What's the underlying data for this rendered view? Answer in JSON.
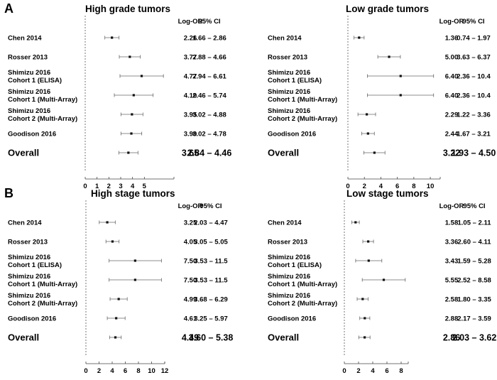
{
  "figure": {
    "panel_labels": [
      "A",
      "B"
    ]
  },
  "chart_data": [
    {
      "type": "forest",
      "panel": "A",
      "title": "High grade tumors",
      "col_logor": "Log-OR",
      "col_ci": "95% CI",
      "xlim": [
        0,
        7.5
      ],
      "xticks": [
        0,
        1,
        2,
        3,
        4,
        5
      ],
      "rows": [
        {
          "label1": "Chen 2014",
          "label2": "",
          "value": 2.26,
          "lo": 1.66,
          "hi": 2.86,
          "value_text": "2.26",
          "ci_text": "1.66 – 2.86"
        },
        {
          "label1": "Rosser 2013",
          "label2": "",
          "value": 3.77,
          "lo": 2.88,
          "hi": 4.66,
          "value_text": "3.77",
          "ci_text": "2.88 – 4.66"
        },
        {
          "label1": "Shimizu 2016",
          "label2": "Cohort 1 (ELISA)",
          "value": 4.77,
          "lo": 2.94,
          "hi": 6.61,
          "value_text": "4.77",
          "ci_text": "2.94 – 6.61"
        },
        {
          "label1": "Shimizu 2016",
          "label2": "Cohort 1 (Multi-Array)",
          "value": 4.1,
          "lo": 2.46,
          "hi": 5.74,
          "value_text": "4.10",
          "ci_text": "2.46 – 5.74"
        },
        {
          "label1": "Shimizu 2016",
          "label2": "Cohort 2 (Multi-Array)",
          "value": 3.95,
          "lo": 3.02,
          "hi": 4.88,
          "value_text": "3.95",
          "ci_text": "3.02 – 4.88"
        },
        {
          "label1": "Goodison 2016",
          "label2": "",
          "value": 3.9,
          "lo": 3.02,
          "hi": 4.78,
          "value_text": "3.90",
          "ci_text": "3.02 – 4.78"
        }
      ],
      "overall": {
        "label": "Overall",
        "value": 3.65,
        "lo": 2.84,
        "hi": 4.46,
        "value_text": "3.65",
        "ci_text": "2.84 – 4.46"
      }
    },
    {
      "type": "forest",
      "panel": "A",
      "title": "Low grade tumors",
      "col_logor": "Log-OR",
      "col_ci": "95% CI",
      "xlim": [
        0,
        11.2
      ],
      "xticks": [
        0,
        2,
        4,
        6,
        8,
        10
      ],
      "rows": [
        {
          "label1": "Chen 2014",
          "label2": "",
          "value": 1.36,
          "lo": 0.74,
          "hi": 1.97,
          "value_text": "1.36",
          "ci_text": "0.74 – 1.97"
        },
        {
          "label1": "Rosser 2013",
          "label2": "",
          "value": 5.0,
          "lo": 3.63,
          "hi": 6.37,
          "value_text": "5.00",
          "ci_text": "3.63 – 6.37"
        },
        {
          "label1": "Shimizu 2016",
          "label2": "Cohort 1 (ELISA)",
          "value": 6.4,
          "lo": 2.36,
          "hi": 10.4,
          "value_text": "6.40",
          "ci_text": "2.36 – 10.4"
        },
        {
          "label1": "Shimizu 2016",
          "label2": "Cohort 1 (Multi-Array)",
          "value": 6.4,
          "lo": 2.36,
          "hi": 10.4,
          "value_text": "6.40",
          "ci_text": "2.36 – 10.4"
        },
        {
          "label1": "Shimizu 2016",
          "label2": "Cohort 2 (Multi-Array)",
          "value": 2.29,
          "lo": 1.22,
          "hi": 3.36,
          "value_text": "2.29",
          "ci_text": "1.22 – 3.36"
        },
        {
          "label1": "Goodison 2016",
          "label2": "",
          "value": 2.44,
          "lo": 1.67,
          "hi": 3.21,
          "value_text": "2.44",
          "ci_text": "1.67 – 3.21"
        }
      ],
      "overall": {
        "label": "Overall",
        "value": 3.22,
        "lo": 1.93,
        "hi": 4.5,
        "value_text": "3.22",
        "ci_text": "1.93 – 4.50"
      }
    },
    {
      "type": "forest",
      "panel": "B",
      "title": "High stage tumors",
      "col_logor": "Log-OR",
      "col_ci": "95% CI",
      "xlim": [
        0,
        12
      ],
      "xticks": [
        0,
        2,
        4,
        6,
        8,
        10,
        12
      ],
      "rows": [
        {
          "label1": "Chen 2014",
          "label2": "",
          "value": 3.25,
          "lo": 2.03,
          "hi": 4.47,
          "value_text": "3.25",
          "ci_text": "2.03 – 4.47"
        },
        {
          "label1": "Rosser 2013",
          "label2": "",
          "value": 4.05,
          "lo": 3.05,
          "hi": 5.05,
          "value_text": "4.05",
          "ci_text": "3.05 – 5.05"
        },
        {
          "label1": "Shimizu 2016",
          "label2": "Cohort 1 (ELISA)",
          "value": 7.5,
          "lo": 3.53,
          "hi": 11.5,
          "value_text": "7.50",
          "ci_text": "3.53 – 11.5"
        },
        {
          "label1": "Shimizu 2016",
          "label2": "Cohort 1 (Multi-Array)",
          "value": 7.5,
          "lo": 3.53,
          "hi": 11.5,
          "value_text": "7.50",
          "ci_text": "3.53 – 11.5"
        },
        {
          "label1": "Shimizu 2016",
          "label2": "Cohort 2 (Multi-Array)",
          "value": 4.99,
          "lo": 3.68,
          "hi": 6.29,
          "value_text": "4.99",
          "ci_text": "3.68 – 6.29"
        },
        {
          "label1": "Goodison 2016",
          "label2": "",
          "value": 4.61,
          "lo": 3.25,
          "hi": 5.97,
          "value_text": "4.61",
          "ci_text": "3.25 – 5.97"
        }
      ],
      "overall": {
        "label": "Overall",
        "value": 4.49,
        "lo": 3.6,
        "hi": 5.38,
        "value_text": "4.49",
        "ci_text": "3.60 – 5.38"
      }
    },
    {
      "type": "forest",
      "panel": "B",
      "title": "Low stage tumors",
      "col_logor": "Log-OR",
      "col_ci": "95% CI",
      "xlim": [
        0,
        9
      ],
      "xticks": [
        0,
        2,
        4,
        6,
        8
      ],
      "rows": [
        {
          "label1": "Chen 2014",
          "label2": "",
          "value": 1.58,
          "lo": 1.05,
          "hi": 2.11,
          "value_text": "1.58",
          "ci_text": "1.05 – 2.11"
        },
        {
          "label1": "Rosser 2013",
          "label2": "",
          "value": 3.36,
          "lo": 2.6,
          "hi": 4.11,
          "value_text": "3.36",
          "ci_text": "2.60 – 4.11"
        },
        {
          "label1": "Shimizu 2016",
          "label2": "Cohort 1 (ELISA)",
          "value": 3.43,
          "lo": 1.59,
          "hi": 5.28,
          "value_text": "3.43",
          "ci_text": "1.59 – 5.28"
        },
        {
          "label1": "Shimizu 2016",
          "label2": "Cohort 1 (Multi-Array)",
          "value": 5.55,
          "lo": 2.52,
          "hi": 8.58,
          "value_text": "5.55",
          "ci_text": "2.52 – 8.58"
        },
        {
          "label1": "Shimizu 2016",
          "label2": "Cohort 2 (Multi-Array)",
          "value": 2.58,
          "lo": 1.8,
          "hi": 3.35,
          "value_text": "2.58",
          "ci_text": "1.80 – 3.35"
        },
        {
          "label1": "Goodison 2016",
          "label2": "",
          "value": 2.88,
          "lo": 2.17,
          "hi": 3.59,
          "value_text": "2.88",
          "ci_text": "2.17 – 3.59"
        }
      ],
      "overall": {
        "label": "Overall",
        "value": 2.86,
        "lo": 2.03,
        "hi": 3.62,
        "value_text": "2.86",
        "ci_text": "2.03 – 3.62"
      }
    }
  ]
}
